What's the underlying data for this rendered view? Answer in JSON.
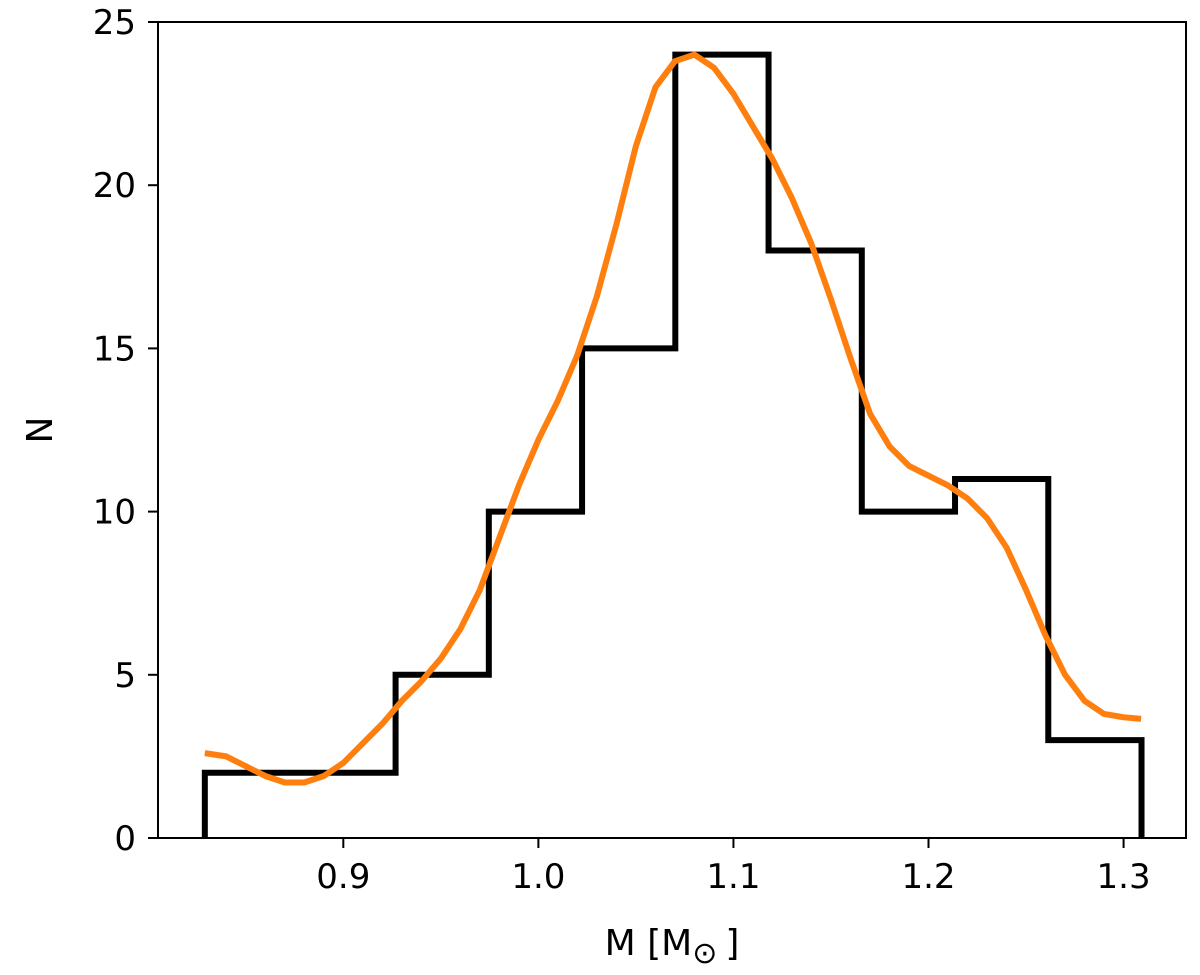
{
  "chart_data": {
    "type": "histogram",
    "xlabel": "M [M",
    "xlabel_symbol": "⊙",
    "xlabel_close": "]",
    "ylabel": "N",
    "xlim": [
      0.805,
      1.332
    ],
    "ylim": [
      0,
      25
    ],
    "xticks": [
      0.9,
      1.0,
      1.1,
      1.2,
      1.3
    ],
    "xtick_labels": [
      "0.9",
      "1.0",
      "1.1",
      "1.2",
      "1.3"
    ],
    "yticks": [
      0,
      5,
      10,
      15,
      20,
      25
    ],
    "ytick_labels": [
      "0",
      "5",
      "10",
      "15",
      "20",
      "25"
    ],
    "grid": false,
    "series": [
      {
        "type": "step",
        "color": "#000000",
        "bin_edges": [
          0.829,
          0.9268,
          0.9746,
          1.0224,
          1.0702,
          1.118,
          1.1658,
          1.2136,
          1.2614,
          1.3092
        ],
        "counts": [
          2,
          5,
          10,
          15,
          24,
          18,
          10,
          11,
          3
        ]
      },
      {
        "type": "line",
        "color": "#ff7f0e",
        "x": [
          0.829,
          0.84,
          0.85,
          0.86,
          0.87,
          0.88,
          0.89,
          0.9,
          0.91,
          0.92,
          0.93,
          0.94,
          0.95,
          0.96,
          0.97,
          0.98,
          0.99,
          1.0,
          1.01,
          1.02,
          1.03,
          1.04,
          1.05,
          1.06,
          1.07,
          1.08,
          1.09,
          1.1,
          1.11,
          1.12,
          1.13,
          1.14,
          1.15,
          1.16,
          1.17,
          1.18,
          1.19,
          1.2,
          1.21,
          1.22,
          1.23,
          1.24,
          1.25,
          1.26,
          1.27,
          1.28,
          1.29,
          1.3,
          1.309
        ],
        "y": [
          2.6,
          2.5,
          2.2,
          1.9,
          1.7,
          1.7,
          1.9,
          2.3,
          2.9,
          3.5,
          4.2,
          4.8,
          5.5,
          6.4,
          7.6,
          9.2,
          10.8,
          12.2,
          13.4,
          14.8,
          16.6,
          18.8,
          21.2,
          23.0,
          23.8,
          24.0,
          23.6,
          22.8,
          21.8,
          20.8,
          19.6,
          18.2,
          16.5,
          14.7,
          13.0,
          12.0,
          11.4,
          11.1,
          10.8,
          10.4,
          9.8,
          8.9,
          7.6,
          6.2,
          5.0,
          4.2,
          3.8,
          3.7,
          3.65
        ]
      }
    ]
  }
}
